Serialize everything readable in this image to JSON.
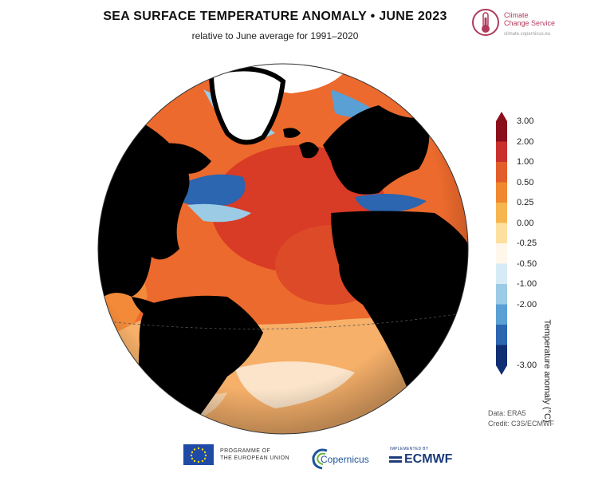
{
  "header": {
    "title": "SEA SURFACE TEMPERATURE ANOMALY • JUNE 2023",
    "subtitle": "relative to June average for 1991–2020"
  },
  "logos": {
    "ccs_line1": "Climate",
    "ccs_line2": "Change Service",
    "ccs_url": "climate.copernicus.eu",
    "eu_line1": "PROGRAMME OF",
    "eu_line2": "THE EUROPEAN UNION",
    "copernicus": "Copernicus",
    "ecmwf_small": "IMPLEMENTED BY",
    "ecmwf": "ECMWF"
  },
  "legend": {
    "axis_label": "Temperature anomaly (°C)",
    "ticks": [
      "3.00",
      "2.00",
      "1.00",
      "0.50",
      "0.25",
      "0.00",
      "-0.25",
      "-0.50",
      "-1.00",
      "-2.00",
      "-3.00"
    ],
    "colors": [
      "#8b0f1a",
      "#c9302c",
      "#e35d2a",
      "#f0882f",
      "#f7b550",
      "#fde0a0",
      "#fff7ea",
      "#d6ebf6",
      "#9ccbe6",
      "#5aa0d4",
      "#2c65b0",
      "#102f73"
    ]
  },
  "credits": {
    "data": "Data: ERA5",
    "credit": "Credit: C3S/ECMWF"
  },
  "colors": {
    "land": "#000000",
    "ice": "#ffffff",
    "warm_dark": "#c9302c",
    "warm": "#e85d2a",
    "warm_light": "#f7a24a",
    "cool": "#8cc0e3",
    "cool_dark": "#2c65b0"
  }
}
